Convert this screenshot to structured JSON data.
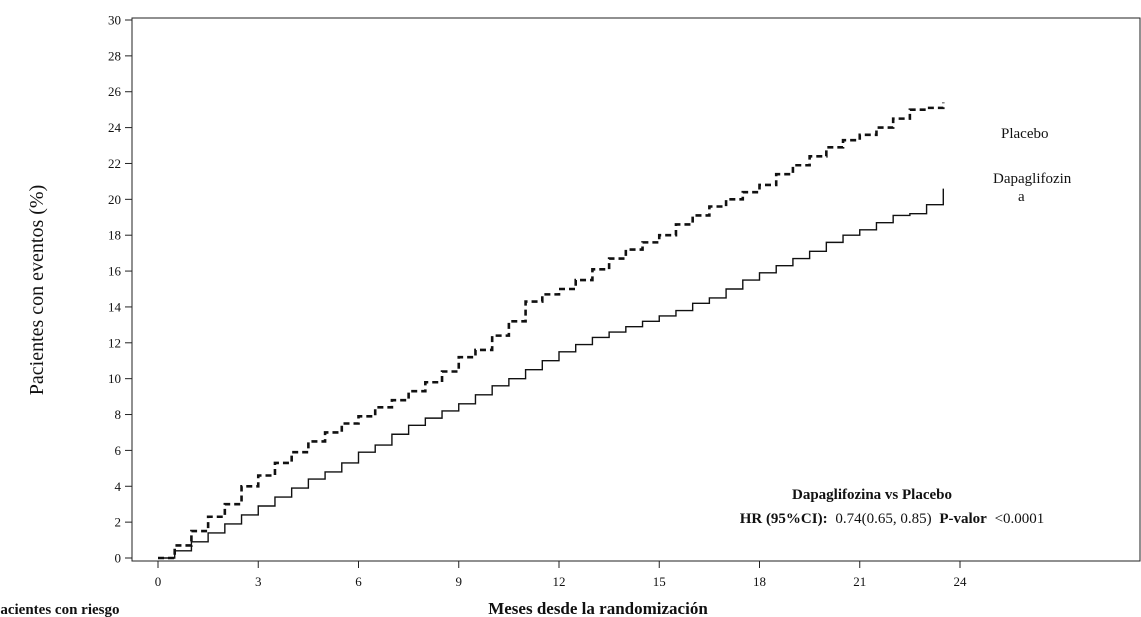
{
  "chart_data": {
    "type": "line",
    "xlabel": "Meses desde la randomización",
    "ylabel": "Pacientes con eventos (%)",
    "xlim": [
      0,
      24
    ],
    "ylim": [
      0,
      30
    ],
    "xticks": [
      0,
      3,
      6,
      9,
      12,
      15,
      18,
      21,
      24
    ],
    "yticks": [
      0,
      2,
      4,
      6,
      8,
      10,
      12,
      14,
      16,
      18,
      20,
      22,
      24,
      26,
      28,
      30
    ],
    "grid": false,
    "series": [
      {
        "name": "Placebo",
        "style": "dashed",
        "x": [
          0,
          0.5,
          1,
          1.5,
          2,
          2.5,
          3,
          3.5,
          4,
          4.5,
          5,
          5.5,
          6,
          6.5,
          7,
          7.5,
          8,
          8.5,
          9,
          9.5,
          10,
          10.5,
          11,
          11.5,
          12,
          12.5,
          13,
          13.5,
          14,
          14.5,
          15,
          15.5,
          16,
          16.5,
          17,
          17.5,
          18,
          18.5,
          19,
          19.5,
          20,
          20.5,
          21,
          21.5,
          22,
          22.5,
          23,
          23.5
        ],
        "y": [
          0,
          0.7,
          1.5,
          2.3,
          3.0,
          4.0,
          4.6,
          5.3,
          5.9,
          6.5,
          7.0,
          7.5,
          7.9,
          8.4,
          8.8,
          9.3,
          9.8,
          10.4,
          11.2,
          11.6,
          12.4,
          13.2,
          14.3,
          14.7,
          15.0,
          15.5,
          16.1,
          16.7,
          17.2,
          17.6,
          18.0,
          18.6,
          19.1,
          19.6,
          20.0,
          20.4,
          20.8,
          21.4,
          21.9,
          22.4,
          22.9,
          23.3,
          23.6,
          24.0,
          24.5,
          25.0,
          25.1,
          25.4
        ]
      },
      {
        "name": "Dapaglifozin",
        "name_suffix": "a",
        "style": "solid",
        "x": [
          0,
          0.5,
          1,
          1.5,
          2,
          2.5,
          3,
          3.5,
          4,
          4.5,
          5,
          5.5,
          6,
          6.5,
          7,
          7.5,
          8,
          8.5,
          9,
          9.5,
          10,
          10.5,
          11,
          11.5,
          12,
          12.5,
          13,
          13.5,
          14,
          14.5,
          15,
          15.5,
          16,
          16.5,
          17,
          17.5,
          18,
          18.5,
          19,
          19.5,
          20,
          20.5,
          21,
          21.5,
          22,
          22.5,
          23,
          23.5
        ],
        "y": [
          0,
          0.4,
          0.9,
          1.4,
          1.9,
          2.4,
          2.9,
          3.4,
          3.9,
          4.4,
          4.8,
          5.3,
          5.9,
          6.3,
          6.9,
          7.4,
          7.8,
          8.2,
          8.6,
          9.1,
          9.6,
          10.0,
          10.5,
          11.0,
          11.5,
          11.9,
          12.3,
          12.6,
          12.9,
          13.2,
          13.5,
          13.8,
          14.2,
          14.5,
          15.0,
          15.5,
          15.9,
          16.3,
          16.7,
          17.1,
          17.6,
          18.0,
          18.3,
          18.7,
          19.1,
          19.2,
          19.7,
          20.6
        ]
      }
    ],
    "annotations": {
      "comparison": "Dapaglifozina vs Placebo",
      "hr_label": "HR (95%CI):",
      "hr_value": "0.74(0.65, 0.85)",
      "p_label": "P-valor",
      "p_value": "<0.0001"
    },
    "bottom_left_text": "pacientes con riesgo"
  }
}
